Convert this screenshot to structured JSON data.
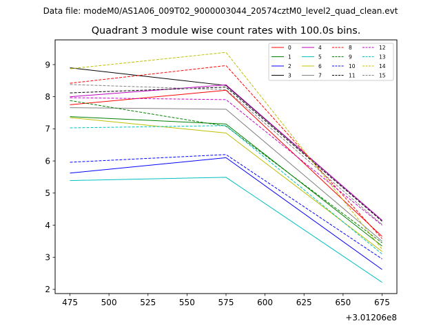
{
  "chart_data": {
    "type": "line",
    "suptitle": "Data file: modeM0/AS1A06_009T02_9000003044_20574cztM0_level2_quad_clean.evt",
    "title": "Quadrant 3 module wise count rates with 100.0s bins.",
    "xlabel": "",
    "ylabel": "",
    "x_offset_label": "+3.01206e8",
    "x": [
      475,
      575,
      675
    ],
    "xlim": [
      465.5,
      684.5
    ],
    "ylim": [
      1.87,
      9.77
    ],
    "xticks": [
      475,
      500,
      525,
      550,
      575,
      600,
      625,
      650,
      675
    ],
    "yticks": [
      2,
      3,
      4,
      5,
      6,
      7,
      8,
      9
    ],
    "grid": false,
    "legend_position": "top-right",
    "legend_columns": 4,
    "series": [
      {
        "name": "0",
        "color": "#ff0000",
        "style": "solid",
        "values": [
          7.75,
          8.2,
          3.65
        ]
      },
      {
        "name": "1",
        "color": "#008000",
        "style": "solid",
        "values": [
          7.38,
          7.15,
          3.35
        ]
      },
      {
        "name": "2",
        "color": "#0000ff",
        "style": "solid",
        "values": [
          5.62,
          6.1,
          2.62
        ]
      },
      {
        "name": "3",
        "color": "#000000",
        "style": "solid",
        "values": [
          8.9,
          8.35,
          4.15
        ]
      },
      {
        "name": "4",
        "color": "#bf00bf",
        "style": "solid",
        "values": [
          8.0,
          8.37,
          4.15
        ]
      },
      {
        "name": "5",
        "color": "#00bfbf",
        "style": "solid",
        "values": [
          5.39,
          5.49,
          2.22
        ]
      },
      {
        "name": "6",
        "color": "#bfbf00",
        "style": "solid",
        "values": [
          7.35,
          6.87,
          3.18
        ]
      },
      {
        "name": "7",
        "color": "#808080",
        "style": "solid",
        "values": [
          7.66,
          7.61,
          3.5
        ]
      },
      {
        "name": "8",
        "color": "#ff0000",
        "style": "dashed",
        "values": [
          8.42,
          8.97,
          3.58
        ]
      },
      {
        "name": "9",
        "color": "#008000",
        "style": "dashed",
        "values": [
          7.88,
          7.08,
          3.45
        ]
      },
      {
        "name": "10",
        "color": "#0000ff",
        "style": "dashed",
        "values": [
          5.96,
          6.2,
          2.95
        ]
      },
      {
        "name": "11",
        "color": "#000000",
        "style": "dashed",
        "values": [
          8.12,
          8.3,
          4.12
        ]
      },
      {
        "name": "12",
        "color": "#bf00bf",
        "style": "dashed",
        "values": [
          7.97,
          7.91,
          4.0
        ]
      },
      {
        "name": "13",
        "color": "#00bfbf",
        "style": "dashed",
        "values": [
          7.03,
          7.1,
          3.1
        ]
      },
      {
        "name": "14",
        "color": "#bfbf00",
        "style": "dashed",
        "values": [
          8.87,
          9.38,
          3.25
        ]
      },
      {
        "name": "15",
        "color": "#808080",
        "style": "dashed",
        "values": [
          8.38,
          8.22,
          4.02
        ]
      }
    ]
  }
}
